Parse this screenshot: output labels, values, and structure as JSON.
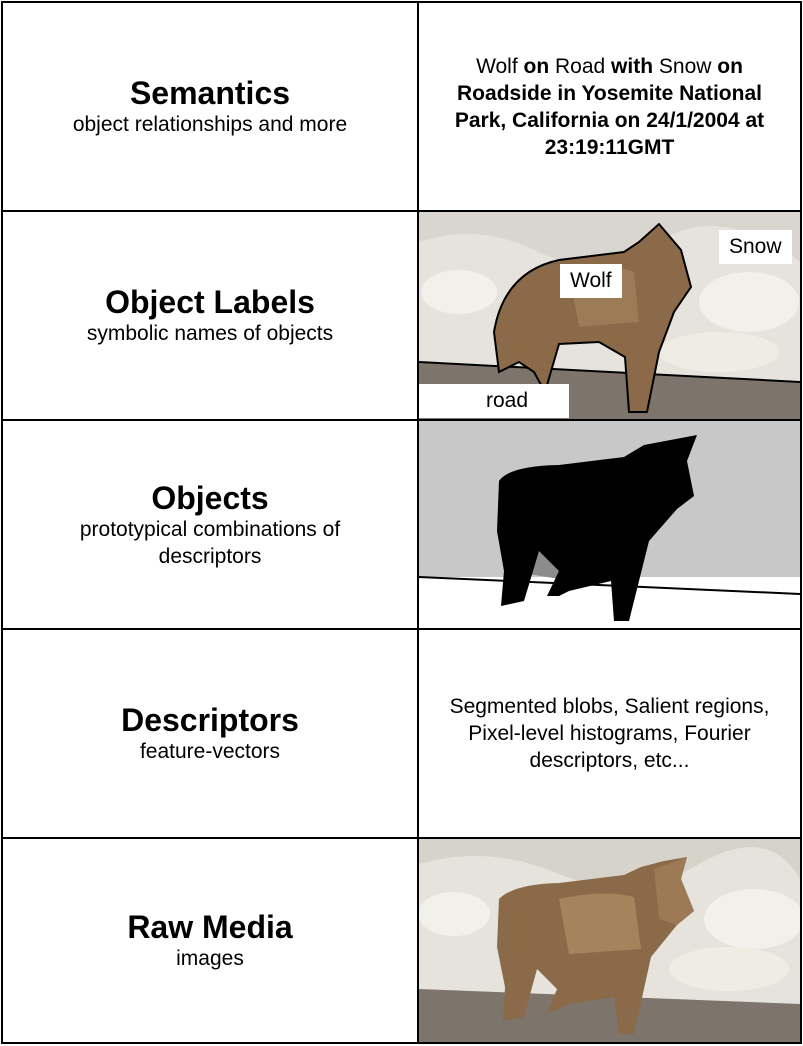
{
  "rows": [
    {
      "title": "Semantics",
      "subtitle": "object relationships and more"
    },
    {
      "title": "Object Labels",
      "subtitle": "symbolic names of objects"
    },
    {
      "title": "Objects",
      "subtitle": "prototypical combinations of descriptors"
    },
    {
      "title": "Descriptors",
      "subtitle": "feature-vectors"
    },
    {
      "title": "Raw Media",
      "subtitle": "images"
    }
  ],
  "semantics_sentence": {
    "w1": "Wolf",
    "c1": " on ",
    "w2": "Road",
    "c2": " with ",
    "w3": "Snow",
    "c3": " on Roadside in Yosemite National Park, California on 24/1/2004 at 23:19:11GMT"
  },
  "labels": {
    "wolf": "Wolf",
    "snow": "Snow",
    "road": "road"
  },
  "descriptors_text": "Segmented blobs, Salient regions, Pixel-level histograms, Fourier descriptors, etc...",
  "colors": {
    "border": "#000000",
    "silhouette_bg": "#c8c8c8",
    "road_shadow": "#8c8c8c",
    "snow": "#e9e6df",
    "wolf_fur": "#8a6a48"
  }
}
